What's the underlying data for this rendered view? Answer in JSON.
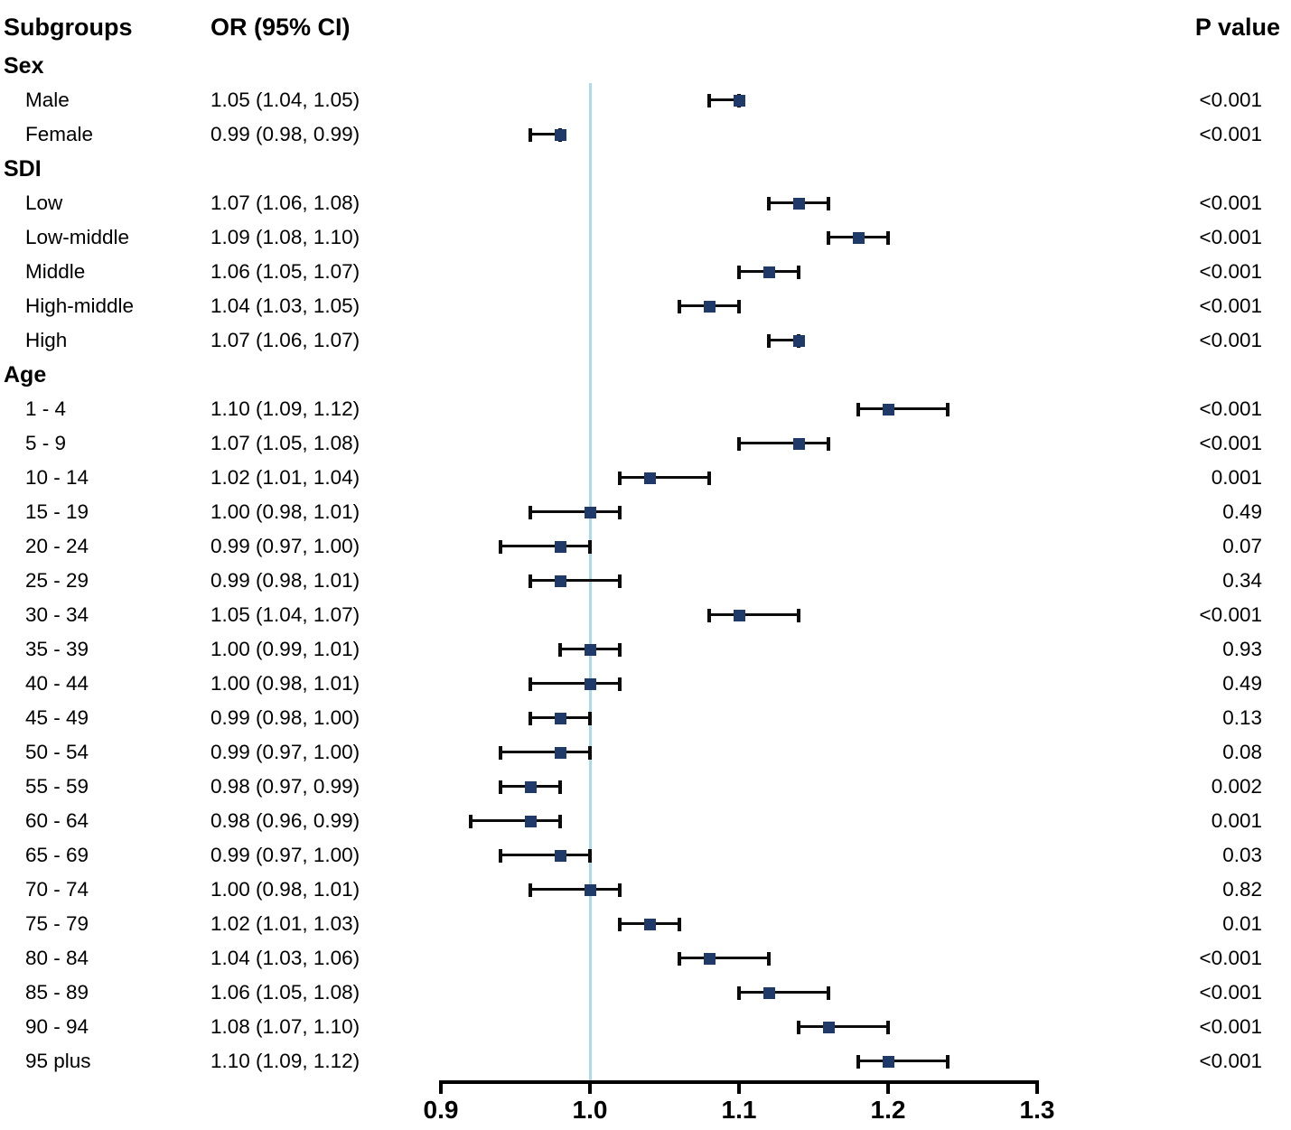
{
  "header": {
    "subgroups": "Subgroups",
    "or_ci": "OR (95% CI)",
    "p_value": "P value"
  },
  "colors": {
    "marker": "#1f3a68",
    "error_bar": "#0b0b0b",
    "reference_line": "#a9dbe8",
    "axis": "#000000",
    "text": "#000000"
  },
  "chart_data": {
    "type": "forest",
    "title": "",
    "xlabel": "",
    "x_axis": {
      "tick_labels": [
        "0.9",
        "1.0",
        "1.1",
        "1.2",
        "1.3"
      ],
      "tick_values": [
        0.9,
        1.0,
        1.1,
        1.2,
        1.3
      ],
      "xlim": [
        0.9,
        1.3
      ],
      "reference_value": 1.0,
      "marker_offset_multiplier": 2,
      "grid": false
    },
    "rows": [
      {
        "section": "Sex"
      },
      {
        "label": "Male",
        "or_text": "1.05 (1.04, 1.05)",
        "or": 1.05,
        "ci_low": 1.04,
        "ci_high": 1.05,
        "p": "<0.001"
      },
      {
        "label": "Female",
        "or_text": "0.99 (0.98, 0.99)",
        "or": 0.99,
        "ci_low": 0.98,
        "ci_high": 0.99,
        "p": "<0.001"
      },
      {
        "section": "SDI"
      },
      {
        "label": "Low",
        "or_text": "1.07 (1.06, 1.08)",
        "or": 1.07,
        "ci_low": 1.06,
        "ci_high": 1.08,
        "p": "<0.001"
      },
      {
        "label": "Low-middle",
        "or_text": "1.09 (1.08, 1.10)",
        "or": 1.09,
        "ci_low": 1.08,
        "ci_high": 1.1,
        "p": "<0.001"
      },
      {
        "label": "Middle",
        "or_text": "1.06 (1.05, 1.07)",
        "or": 1.06,
        "ci_low": 1.05,
        "ci_high": 1.07,
        "p": "<0.001"
      },
      {
        "label": "High-middle",
        "or_text": "1.04 (1.03, 1.05)",
        "or": 1.04,
        "ci_low": 1.03,
        "ci_high": 1.05,
        "p": "<0.001"
      },
      {
        "label": "High",
        "or_text": "1.07 (1.06, 1.07)",
        "or": 1.07,
        "ci_low": 1.06,
        "ci_high": 1.07,
        "p": "<0.001"
      },
      {
        "section": "Age"
      },
      {
        "label": "1 - 4",
        "or_text": "1.10 (1.09, 1.12)",
        "or": 1.1,
        "ci_low": 1.09,
        "ci_high": 1.12,
        "p": "<0.001"
      },
      {
        "label": "5 - 9",
        "or_text": "1.07 (1.05, 1.08)",
        "or": 1.07,
        "ci_low": 1.05,
        "ci_high": 1.08,
        "p": "<0.001"
      },
      {
        "label": "10 - 14",
        "or_text": "1.02 (1.01, 1.04)",
        "or": 1.02,
        "ci_low": 1.01,
        "ci_high": 1.04,
        "p": "0.001"
      },
      {
        "label": "15 - 19",
        "or_text": "1.00 (0.98, 1.01)",
        "or": 1.0,
        "ci_low": 0.98,
        "ci_high": 1.01,
        "p": "0.49"
      },
      {
        "label": "20 - 24",
        "or_text": "0.99 (0.97, 1.00)",
        "or": 0.99,
        "ci_low": 0.97,
        "ci_high": 1.0,
        "p": "0.07"
      },
      {
        "label": "25 - 29",
        "or_text": "0.99 (0.98, 1.01)",
        "or": 0.99,
        "ci_low": 0.98,
        "ci_high": 1.01,
        "p": "0.34"
      },
      {
        "label": "30 - 34",
        "or_text": "1.05 (1.04, 1.07)",
        "or": 1.05,
        "ci_low": 1.04,
        "ci_high": 1.07,
        "p": "<0.001"
      },
      {
        "label": "35 - 39",
        "or_text": "1.00 (0.99, 1.01)",
        "or": 1.0,
        "ci_low": 0.99,
        "ci_high": 1.01,
        "p": "0.93"
      },
      {
        "label": "40 - 44",
        "or_text": "1.00 (0.98, 1.01)",
        "or": 1.0,
        "ci_low": 0.98,
        "ci_high": 1.01,
        "p": "0.49"
      },
      {
        "label": "45 - 49",
        "or_text": "0.99 (0.98, 1.00)",
        "or": 0.99,
        "ci_low": 0.98,
        "ci_high": 1.0,
        "p": "0.13"
      },
      {
        "label": "50 - 54",
        "or_text": "0.99 (0.97, 1.00)",
        "or": 0.99,
        "ci_low": 0.97,
        "ci_high": 1.0,
        "p": "0.08"
      },
      {
        "label": "55 - 59",
        "or_text": "0.98 (0.97, 0.99)",
        "or": 0.98,
        "ci_low": 0.97,
        "ci_high": 0.99,
        "p": "0.002"
      },
      {
        "label": "60 - 64",
        "or_text": "0.98 (0.96, 0.99)",
        "or": 0.98,
        "ci_low": 0.96,
        "ci_high": 0.99,
        "p": "0.001"
      },
      {
        "label": "65 - 69",
        "or_text": "0.99 (0.97, 1.00)",
        "or": 0.99,
        "ci_low": 0.97,
        "ci_high": 1.0,
        "p": "0.03"
      },
      {
        "label": "70 - 74",
        "or_text": "1.00 (0.98, 1.01)",
        "or": 1.0,
        "ci_low": 0.98,
        "ci_high": 1.01,
        "p": "0.82"
      },
      {
        "label": "75 - 79",
        "or_text": "1.02 (1.01, 1.03)",
        "or": 1.02,
        "ci_low": 1.01,
        "ci_high": 1.03,
        "p": "0.01"
      },
      {
        "label": "80 - 84",
        "or_text": "1.04 (1.03, 1.06)",
        "or": 1.04,
        "ci_low": 1.03,
        "ci_high": 1.06,
        "p": "<0.001"
      },
      {
        "label": "85 - 89",
        "or_text": "1.06 (1.05, 1.08)",
        "or": 1.06,
        "ci_low": 1.05,
        "ci_high": 1.08,
        "p": "<0.001"
      },
      {
        "label": "90 - 94",
        "or_text": "1.08 (1.07, 1.10)",
        "or": 1.08,
        "ci_low": 1.07,
        "ci_high": 1.1,
        "p": "<0.001"
      },
      {
        "label": "95 plus",
        "or_text": "1.10 (1.09, 1.12)",
        "or": 1.1,
        "ci_low": 1.09,
        "ci_high": 1.12,
        "p": "<0.001"
      }
    ]
  }
}
